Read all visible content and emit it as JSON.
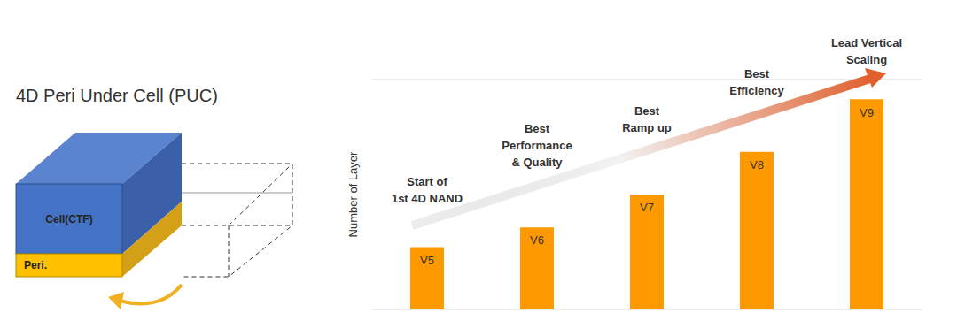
{
  "diagram": {
    "title": "4D Peri Under Cell (PUC)",
    "blocks": [
      {
        "label": "Cell(CTF)",
        "color": "#4472c4"
      },
      {
        "label": "Peri.",
        "color": "#ffc000"
      }
    ]
  },
  "chart_data": {
    "type": "bar",
    "categories": [
      "V5",
      "V6",
      "V7",
      "V8",
      "V9"
    ],
    "values": [
      1.9,
      2.5,
      3.5,
      4.8,
      6.4
    ],
    "color": "#ff9900",
    "ylabel": "Number of Layer",
    "ylim": [
      0,
      7
    ],
    "yticks": [
      0,
      1,
      2,
      3,
      4,
      5,
      6,
      7
    ],
    "grid": true,
    "tick_labels": false,
    "annotations": [
      {
        "category": "V5",
        "lines": [
          "Start of",
          "1st 4D NAND"
        ]
      },
      {
        "category": "V6",
        "lines": [
          "Best",
          "Performance",
          "& Quality"
        ]
      },
      {
        "category": "V7",
        "lines": [
          "Best",
          "Ramp up"
        ]
      },
      {
        "category": "V8",
        "lines": [
          "Best",
          "Efficiency"
        ]
      },
      {
        "category": "V9",
        "lines": [
          "Lead Vertical",
          "Scaling"
        ]
      }
    ]
  }
}
